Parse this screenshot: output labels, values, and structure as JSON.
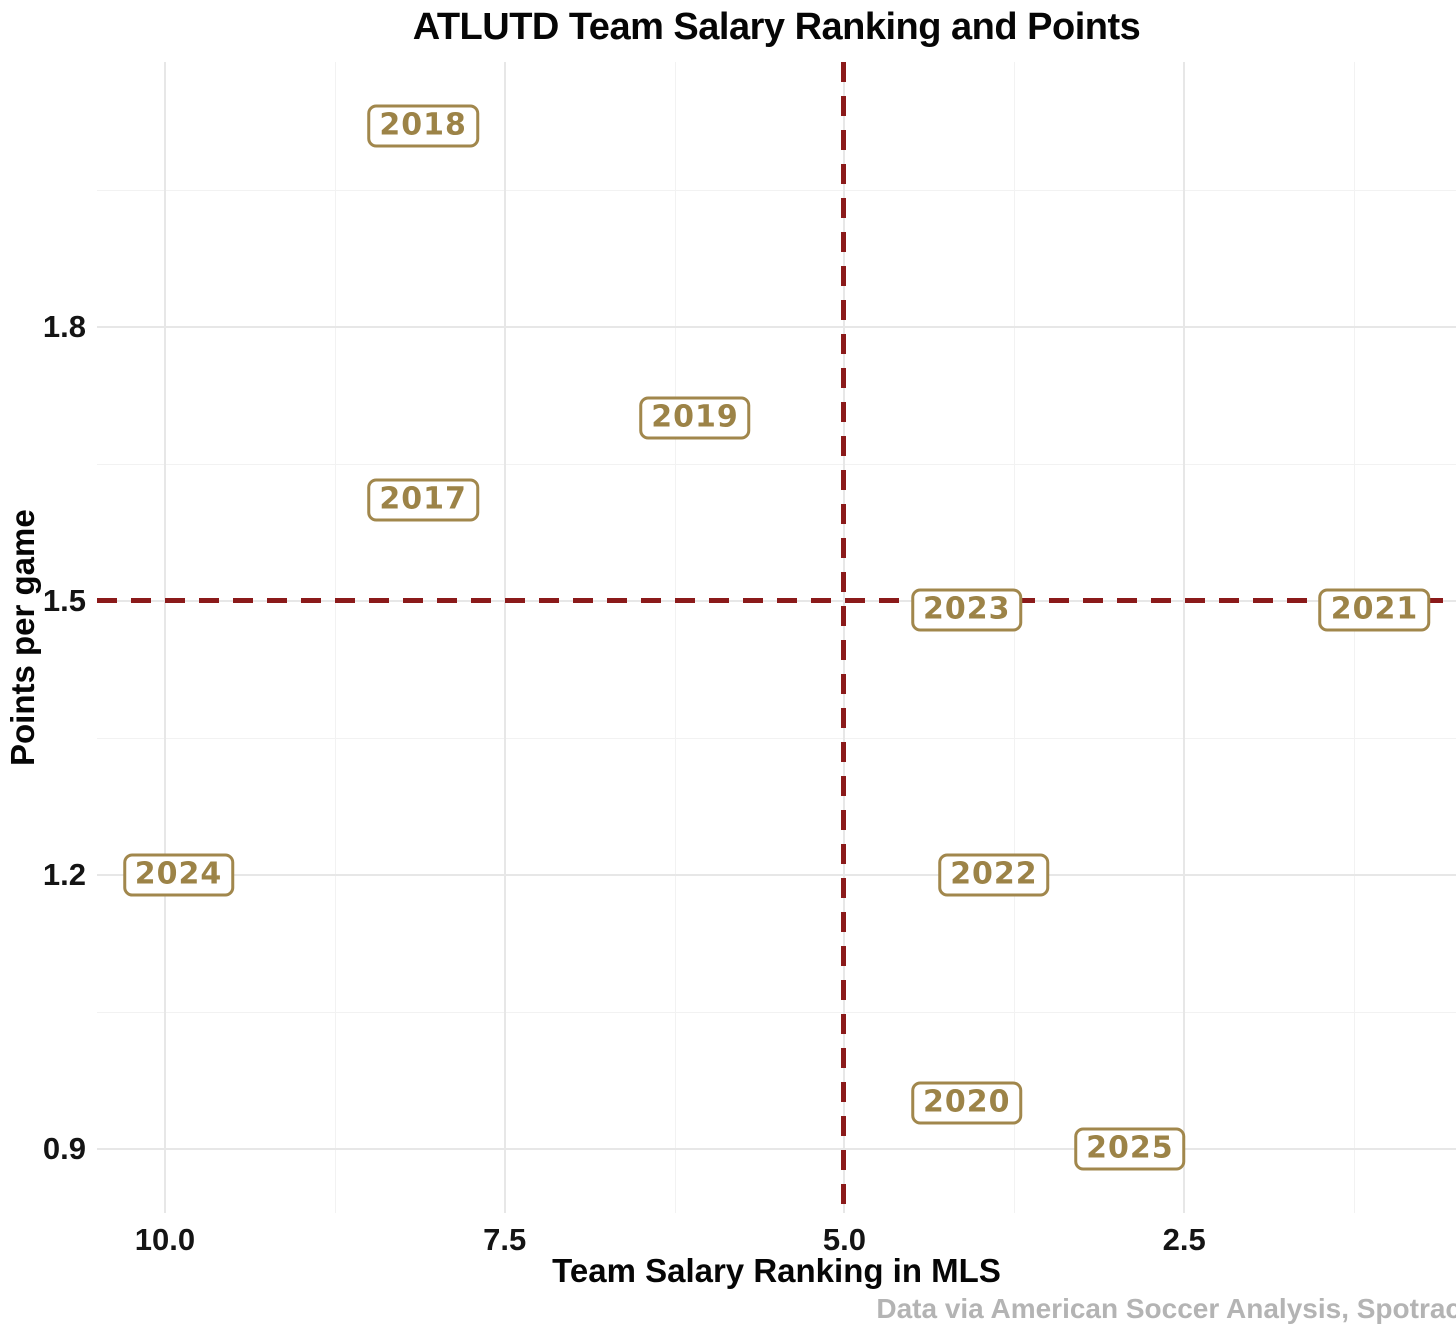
{
  "title": "ATLUTD Team Salary Ranking and Points",
  "caption": "Data via American Soccer Analysis, Spotrac",
  "x_axis": {
    "label": "Team Salary Ranking in MLS",
    "tick_labels": [
      "10.0",
      "7.5",
      "5.0",
      "2.5"
    ]
  },
  "y_axis": {
    "label": "Points per game",
    "tick_labels": [
      "1.8",
      "1.5",
      "1.2",
      "0.9"
    ]
  },
  "colors": {
    "gold_text": "#9c8347",
    "gold_border": "#a1874c",
    "reference_line_red": "#8b1a1a",
    "grid_major": "#e7e7e7",
    "grid_minor": "#f2f2f2",
    "caption_gray": "#b4b4b4",
    "text_black": "#060606"
  },
  "chart_data": {
    "type": "scatter",
    "title": "ATLUTD Team Salary Ranking and Points",
    "xlabel": "Team Salary Ranking in MLS",
    "ylabel": "Points per game",
    "x_reversed": true,
    "xlim": [
      10.5,
      0.5
    ],
    "ylim": [
      0.83,
      2.09
    ],
    "x_tick_values": [
      10.0,
      7.5,
      5.0,
      2.5
    ],
    "y_tick_values": [
      1.8,
      1.5,
      1.2,
      0.9
    ],
    "x_minor_gridlines": [
      8.75,
      6.25,
      3.75,
      1.25
    ],
    "y_minor_gridlines": [
      1.95,
      1.65,
      1.35,
      1.05
    ],
    "reference_line_x": 5.0,
    "reference_line_y": 1.5,
    "grid": true,
    "point_style": "boxed-year-labels",
    "points": [
      {
        "label": "2017",
        "salary_rank": 8.1,
        "points_per_game": 1.61
      },
      {
        "label": "2018",
        "salary_rank": 8.1,
        "points_per_game": 2.02
      },
      {
        "label": "2019",
        "salary_rank": 6.1,
        "points_per_game": 1.7
      },
      {
        "label": "2020",
        "salary_rank": 4.1,
        "points_per_game": 0.95
      },
      {
        "label": "2021",
        "salary_rank": 1.1,
        "points_per_game": 1.49
      },
      {
        "label": "2022",
        "salary_rank": 3.9,
        "points_per_game": 1.2
      },
      {
        "label": "2023",
        "salary_rank": 4.1,
        "points_per_game": 1.49
      },
      {
        "label": "2024",
        "salary_rank": 9.9,
        "points_per_game": 1.2
      },
      {
        "label": "2025",
        "salary_rank": 2.9,
        "points_per_game": 0.9
      }
    ]
  }
}
